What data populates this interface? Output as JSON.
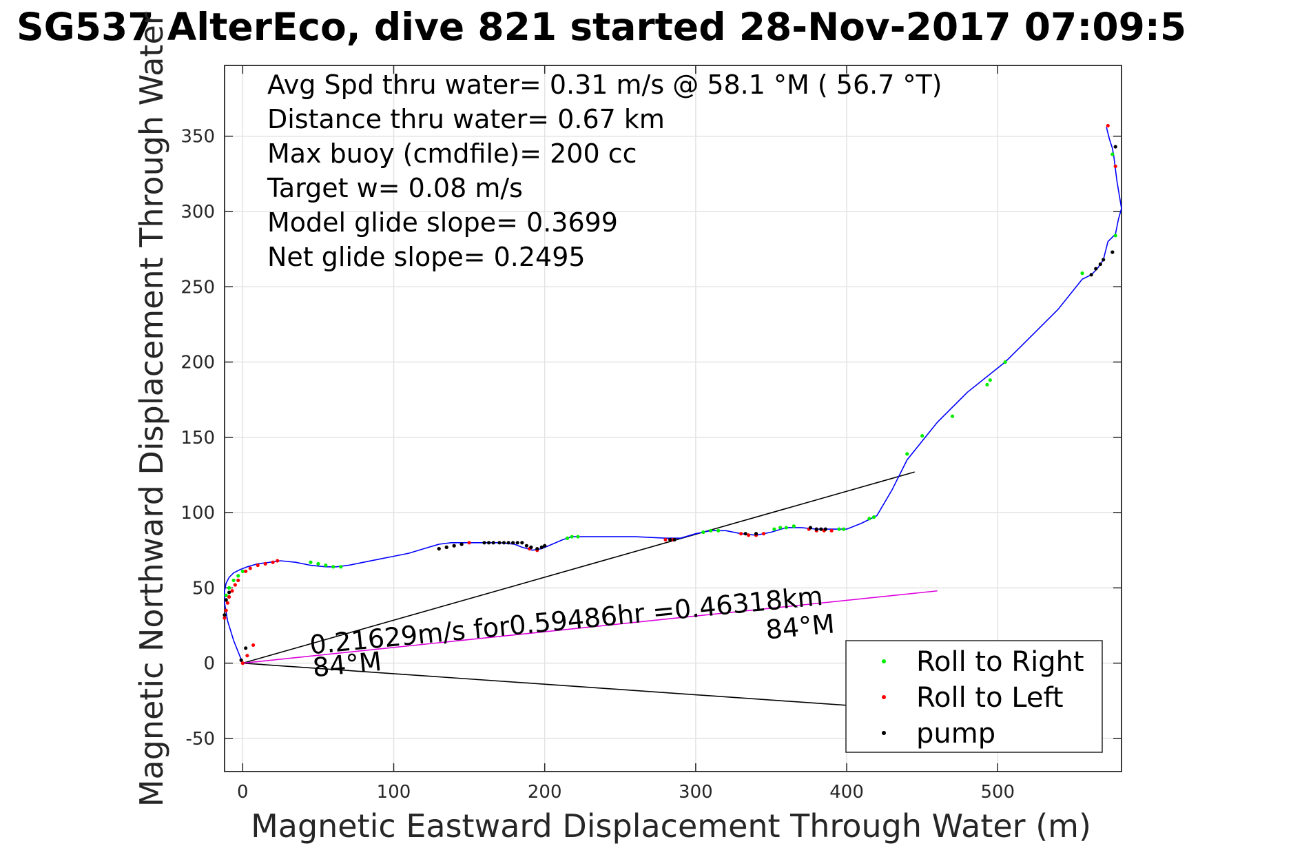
{
  "title": "SG537 AlterEco, dive 821 started 28-Nov-2017 07:09:5",
  "chart_data": {
    "type": "line",
    "xlabel": "Magnetic Eastward Displacement Through Water (m)",
    "ylabel": "Magnetic Northward Displacement Through Water (",
    "xlim": [
      -12,
      582
    ],
    "ylim": [
      -72,
      397
    ],
    "xticks": [
      0,
      100,
      200,
      300,
      400,
      500
    ],
    "yticks": [
      -50,
      0,
      50,
      100,
      150,
      200,
      250,
      300,
      350
    ],
    "grid": true,
    "info_lines": [
      "Avg Spd thru water=  0.31 m/s @  58.1 °M ( 56.7 °T)",
      "Distance thru water=  0.67 km",
      "Max buoy (cmdfile)= 200 cc",
      "Target w= 0.08 m/s",
      "Model glide slope= 0.3699",
      "Net glide slope= 0.2495"
    ],
    "track": {
      "x": [
        0,
        -2,
        -6,
        -10,
        -12,
        -12,
        -11,
        -9,
        -6,
        -2,
        3,
        10,
        18,
        25,
        35,
        45,
        55,
        62,
        70,
        80,
        90,
        100,
        110,
        120,
        130,
        138,
        145,
        150,
        160,
        170,
        180,
        185,
        192,
        198,
        205,
        212,
        218,
        225,
        240,
        260,
        280,
        290,
        300,
        310,
        320,
        330,
        340,
        350,
        360,
        370,
        380,
        390,
        400,
        410,
        420,
        430,
        440,
        460,
        480,
        495,
        505,
        520,
        540,
        556,
        562,
        566,
        570,
        571,
        573,
        578,
        580,
        582,
        579,
        577,
        576,
        574,
        572
      ],
      "y": [
        0,
        5,
        15,
        28,
        40,
        48,
        53,
        57,
        60,
        62,
        64,
        66,
        67,
        68,
        67,
        65,
        64,
        64,
        65,
        67,
        69,
        71,
        73,
        76,
        79,
        80,
        80,
        80,
        80,
        80,
        79,
        77,
        75,
        76,
        79,
        82,
        84,
        84,
        84,
        84,
        83,
        83,
        86,
        88,
        88,
        86,
        85,
        87,
        90,
        90,
        89,
        89,
        89,
        93,
        98,
        115,
        135,
        160,
        180,
        192,
        200,
        215,
        235,
        255,
        258,
        262,
        268,
        272,
        280,
        285,
        295,
        302,
        320,
        336,
        342,
        348,
        356
      ],
      "color": "#0000ff"
    },
    "series": [
      {
        "name": "Roll to Right",
        "color": "#00ee00",
        "x": [
          -11,
          -9,
          -6,
          -3,
          0,
          45,
          50,
          55,
          60,
          65,
          215,
          218,
          222,
          305,
          310,
          315,
          352,
          356,
          360,
          365,
          395,
          398,
          415,
          418,
          440,
          450,
          470,
          493,
          495,
          505,
          556,
          578,
          576
        ],
        "y": [
          45,
          50,
          55,
          58,
          61,
          67,
          66,
          65,
          64,
          64,
          83,
          84,
          84,
          87,
          88,
          88,
          89,
          90,
          90,
          91,
          89,
          89,
          96,
          97,
          139,
          151,
          164,
          185,
          188,
          200,
          259,
          284,
          338
        ]
      },
      {
        "name": "Roll to Left",
        "color": "#ff0000",
        "x": [
          0,
          3,
          7,
          -12,
          -11,
          -10,
          -9,
          -7,
          -5,
          -3,
          2,
          5,
          10,
          15,
          20,
          23,
          130,
          135,
          140,
          145,
          150,
          190,
          195,
          280,
          285,
          330,
          335,
          340,
          345,
          375,
          380,
          385,
          390,
          573,
          578
        ],
        "y": [
          0,
          5,
          12,
          30,
          35,
          40,
          44,
          48,
          52,
          55,
          61,
          63,
          65,
          66,
          67,
          68,
          76,
          77,
          78,
          79,
          80,
          76,
          75,
          82,
          82,
          86,
          85,
          85,
          86,
          89,
          88,
          88,
          88,
          357,
          330
        ]
      },
      {
        "name": "pump",
        "color": "#000000",
        "x": [
          -1,
          2,
          -12,
          -11,
          -9,
          130,
          135,
          140,
          145,
          160,
          163,
          166,
          170,
          173,
          176,
          179,
          182,
          185,
          188,
          191,
          195,
          198,
          200,
          283,
          286,
          333,
          340,
          376,
          380,
          383,
          386,
          562,
          565,
          568,
          570,
          576,
          578
        ],
        "y": [
          2,
          10,
          32,
          42,
          47,
          76,
          77,
          78,
          79,
          80,
          80,
          80,
          80,
          80,
          80,
          80,
          80,
          80,
          78,
          77,
          76,
          77,
          78,
          82,
          82,
          86,
          86,
          90,
          89,
          89,
          89,
          258,
          262,
          265,
          268,
          273,
          343
        ]
      }
    ],
    "lines": [
      {
        "x": [
          0,
          445
        ],
        "y": [
          0,
          127
        ],
        "color": "#000000"
      },
      {
        "x": [
          0,
          400
        ],
        "y": [
          0,
          -28
        ],
        "color": "#000000"
      },
      {
        "x": [
          0,
          460
        ],
        "y": [
          0,
          48
        ],
        "color": "#dd00dd"
      }
    ],
    "annotations": [
      {
        "text": "0.21629m/s for0.59486hr =0.46318km",
        "x": 45,
        "y": 6,
        "rotate": -5.5
      },
      {
        "text": "84°M",
        "x": 347,
        "y": 16,
        "rotate": -5.5
      },
      {
        "text": "84°M",
        "x": 47,
        "y": -9,
        "rotate": -5.5
      }
    ],
    "legend": {
      "position": "bottom-right",
      "entries": [
        "Roll to Right",
        "Roll to Left",
        "pump"
      ]
    }
  }
}
